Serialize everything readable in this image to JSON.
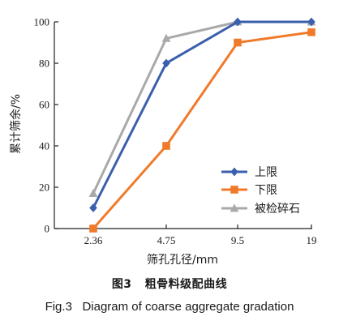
{
  "chart_data": {
    "type": "line",
    "xlabel": "筛孔孔径/mm",
    "ylabel": "累计筛余/%",
    "categories": [
      "2.36",
      "4.75",
      "9.5",
      "19"
    ],
    "ylim": [
      0,
      100
    ],
    "yticks": [
      "0",
      "20",
      "40",
      "60",
      "80",
      "100"
    ],
    "legend_position": "bottom-right",
    "grid": false,
    "series": [
      {
        "name": "上限",
        "values": [
          10,
          80,
          100,
          100
        ],
        "color": "#3a5fad",
        "marker": "diamond"
      },
      {
        "name": "下限",
        "values": [
          0,
          40,
          90,
          95
        ],
        "color": "#f07a2a",
        "marker": "square"
      },
      {
        "name": "被检碎石",
        "values": [
          17,
          92,
          100,
          100
        ],
        "color": "#a9a9a9",
        "marker": "triangle"
      }
    ]
  },
  "caption": {
    "cn_label": "图3",
    "cn_text": "粗骨料级配曲线",
    "en_label": "Fig.3",
    "en_text": "Diagram of coarse aggregate gradation"
  }
}
